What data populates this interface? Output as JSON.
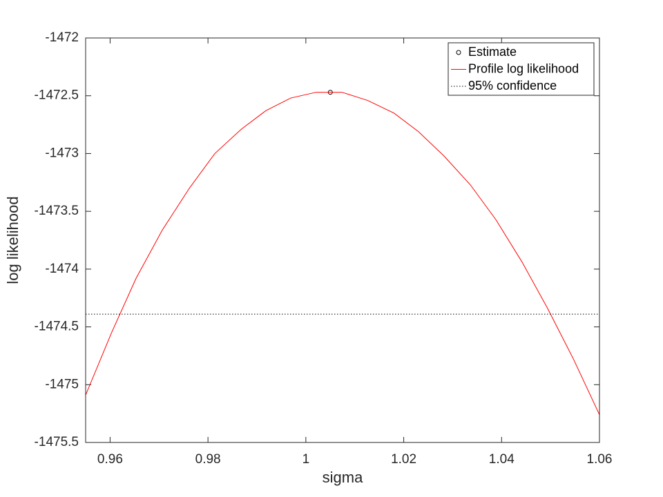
{
  "chart_data": {
    "type": "line",
    "xlabel": "sigma",
    "ylabel": "log likelihood",
    "xlim": [
      0.955,
      1.06
    ],
    "xticks": [
      0.96,
      0.98,
      1,
      1.02,
      1.04,
      1.06
    ],
    "ylim": [
      -1475.5,
      -1472
    ],
    "yticks": [
      -1475.5,
      -1475,
      -1474.5,
      -1474,
      -1473.5,
      -1473,
      -1472.5,
      -1472
    ],
    "legend": "top-right",
    "series": [
      {
        "name": "Estimate",
        "color": "#000000",
        "marker": "circle",
        "x": [
          1.005
        ],
        "values": [
          -1472.47
        ]
      },
      {
        "name": "Profile log likelihood",
        "color": "#ff0000",
        "x": [
          0.955,
          0.9603,
          0.9653,
          0.9707,
          0.9762,
          0.9814,
          0.9868,
          0.9918,
          0.9969,
          1.0021,
          1.0074,
          1.0126,
          1.018,
          1.023,
          1.0282,
          1.0336,
          1.0388,
          1.0442,
          1.0494,
          1.0547,
          1.06
        ],
        "values": [
          -1475.09,
          -1474.55,
          -1474.08,
          -1473.66,
          -1473.3,
          -1473.0,
          -1472.79,
          -1472.63,
          -1472.52,
          -1472.47,
          -1472.47,
          -1472.54,
          -1472.65,
          -1472.81,
          -1473.02,
          -1473.27,
          -1473.57,
          -1473.94,
          -1474.34,
          -1474.78,
          -1475.26
        ]
      },
      {
        "name": "95% confidence",
        "color": "#000000",
        "dash": "dotted",
        "x": [
          0.955,
          1.06
        ],
        "values": [
          -1474.39,
          -1474.39
        ]
      }
    ]
  }
}
